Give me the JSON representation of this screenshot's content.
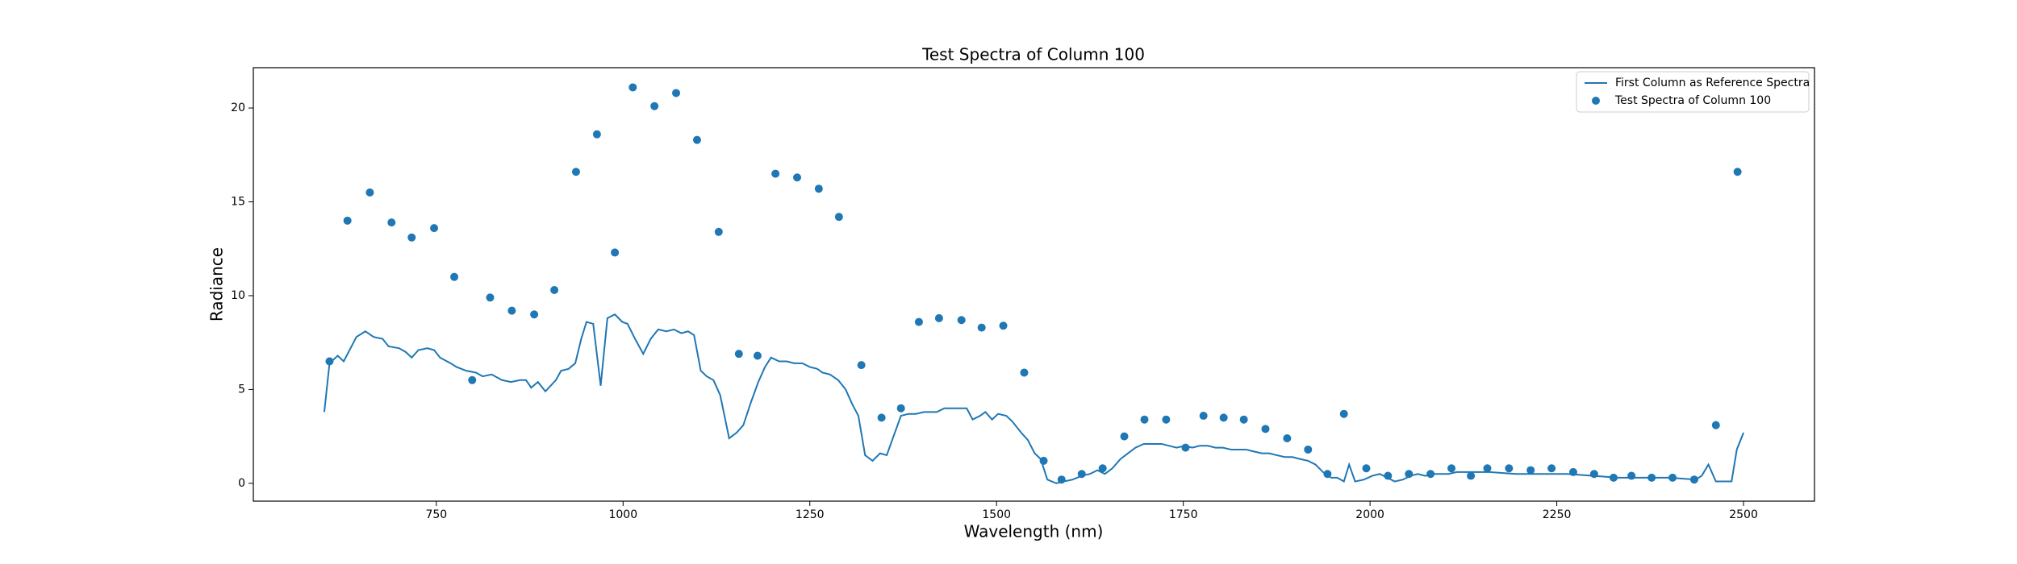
{
  "chart_data": {
    "type": "line",
    "title": "Test Spectra of Column 100",
    "x_label": "Wavelength (nm)",
    "y_label": "Radiance",
    "xlim": [
      505,
      2595
    ],
    "ylim": [
      -0.95,
      22.15
    ],
    "xticks": [
      750,
      1000,
      1250,
      1500,
      1750,
      2000,
      2250,
      2500
    ],
    "yticks": [
      0,
      5,
      10,
      15,
      20
    ],
    "grid": false,
    "legend": "upper right",
    "series": [
      {
        "name": "First Column as Reference Spectra",
        "type": "line",
        "color": "#1f77b4",
        "x": [
          600,
          607,
          618,
          626,
          643,
          655,
          666,
          678,
          686,
          700,
          709,
          717,
          726,
          738,
          747,
          755,
          769,
          777,
          790,
          803,
          812,
          824,
          838,
          850,
          862,
          870,
          877,
          886,
          896,
          910,
          917,
          927,
          936,
          944,
          951,
          960,
          970,
          979,
          989,
          999,
          1006,
          1016,
          1027,
          1037,
          1047,
          1058,
          1068,
          1078,
          1087,
          1095,
          1104,
          1112,
          1121,
          1130,
          1142,
          1152,
          1161,
          1171,
          1181,
          1190,
          1198,
          1209,
          1219,
          1229,
          1240,
          1250,
          1260,
          1267,
          1277,
          1288,
          1298,
          1307,
          1315,
          1324,
          1334,
          1344,
          1353,
          1362,
          1372,
          1382,
          1392,
          1403,
          1411,
          1420,
          1430,
          1441,
          1449,
          1460,
          1468,
          1478,
          1485,
          1494,
          1502,
          1513,
          1521,
          1533,
          1542,
          1551,
          1559,
          1568,
          1580,
          1590,
          1602,
          1614,
          1625,
          1635,
          1645,
          1655,
          1666,
          1676,
          1686,
          1697,
          1709,
          1721,
          1731,
          1741,
          1752,
          1762,
          1772,
          1783,
          1793,
          1803,
          1814,
          1824,
          1834,
          1844,
          1855,
          1865,
          1875,
          1886,
          1896,
          1906,
          1917,
          1927,
          1937,
          1948,
          1956,
          1965,
          1972,
          1980,
          1992,
          2003,
          2013,
          2023,
          2033,
          2044,
          2054,
          2064,
          2074,
          2085,
          2095,
          2105,
          2116,
          2126,
          2136,
          2160,
          2195,
          2229,
          2264,
          2298,
          2332,
          2367,
          2401,
          2436,
          2444,
          2453,
          2463,
          2474,
          2484,
          2491,
          2500
        ],
        "values": [
          3.8,
          6.4,
          6.8,
          6.5,
          7.8,
          8.1,
          7.8,
          7.7,
          7.3,
          7.2,
          7.0,
          6.7,
          7.1,
          7.2,
          7.1,
          6.7,
          6.4,
          6.2,
          6.0,
          5.9,
          5.7,
          5.8,
          5.5,
          5.4,
          5.5,
          5.5,
          5.1,
          5.4,
          4.9,
          5.5,
          6.0,
          6.1,
          6.4,
          7.7,
          8.6,
          8.5,
          5.2,
          8.8,
          9.0,
          8.6,
          8.5,
          7.7,
          6.9,
          7.7,
          8.2,
          8.1,
          8.2,
          8.0,
          8.1,
          7.9,
          6.0,
          5.7,
          5.5,
          4.7,
          2.4,
          2.7,
          3.1,
          4.3,
          5.4,
          6.2,
          6.7,
          6.5,
          6.5,
          6.4,
          6.4,
          6.2,
          6.1,
          5.9,
          5.8,
          5.5,
          5.0,
          4.2,
          3.6,
          1.5,
          1.2,
          1.6,
          1.5,
          2.5,
          3.6,
          3.7,
          3.7,
          3.8,
          3.8,
          3.8,
          4.0,
          4.0,
          4.0,
          4.0,
          3.4,
          3.6,
          3.8,
          3.4,
          3.7,
          3.6,
          3.3,
          2.7,
          2.3,
          1.6,
          1.3,
          0.2,
          0.0,
          0.1,
          0.2,
          0.4,
          0.5,
          0.7,
          0.5,
          0.8,
          1.3,
          1.6,
          1.9,
          2.1,
          2.1,
          2.1,
          2.0,
          1.9,
          2.0,
          1.9,
          2.0,
          2.0,
          1.9,
          1.9,
          1.8,
          1.8,
          1.8,
          1.7,
          1.6,
          1.6,
          1.5,
          1.4,
          1.4,
          1.3,
          1.2,
          1.0,
          0.6,
          0.3,
          0.3,
          0.1,
          1.0,
          0.1,
          0.2,
          0.4,
          0.5,
          0.3,
          0.1,
          0.2,
          0.4,
          0.5,
          0.4,
          0.5,
          0.5,
          0.5,
          0.6,
          0.6,
          0.6,
          0.6,
          0.5,
          0.5,
          0.5,
          0.4,
          0.3,
          0.3,
          0.3,
          0.2,
          0.4,
          1.0,
          0.1,
          0.1,
          0.1,
          1.8,
          2.7
        ]
      },
      {
        "name": "Test Spectra of Column 100",
        "type": "scatter",
        "color": "#1f77b4",
        "x": [
          607,
          631,
          661,
          690,
          717,
          747,
          774,
          798,
          822,
          851,
          881,
          908,
          937,
          965,
          989,
          1013,
          1042,
          1071,
          1099,
          1128,
          1155,
          1180,
          1204,
          1233,
          1262,
          1289,
          1319,
          1346,
          1372,
          1396,
          1423,
          1453,
          1480,
          1509,
          1537,
          1563,
          1587,
          1614,
          1642,
          1671,
          1698,
          1727,
          1753,
          1777,
          1804,
          1831,
          1860,
          1889,
          1917,
          1943,
          1965,
          1995,
          2024,
          2052,
          2081,
          2109,
          2135,
          2157,
          2186,
          2215,
          2243,
          2272,
          2300,
          2326,
          2350,
          2377,
          2405,
          2434,
          2463,
          2492
        ],
        "values": [
          6.5,
          14.0,
          15.5,
          13.9,
          13.1,
          13.6,
          11.0,
          5.5,
          9.9,
          9.2,
          9.0,
          10.3,
          16.6,
          18.6,
          12.3,
          21.1,
          20.1,
          20.8,
          18.3,
          13.4,
          6.9,
          6.8,
          16.5,
          16.3,
          15.7,
          14.2,
          6.3,
          3.5,
          4.0,
          8.6,
          8.8,
          8.7,
          8.3,
          8.4,
          5.9,
          1.2,
          0.2,
          0.5,
          0.8,
          2.5,
          3.4,
          3.4,
          1.9,
          3.6,
          3.5,
          3.4,
          2.9,
          2.4,
          1.8,
          0.5,
          3.7,
          0.8,
          0.4,
          0.5,
          0.5,
          0.8,
          0.4,
          0.8,
          0.8,
          0.7,
          0.8,
          0.6,
          0.5,
          0.3,
          0.4,
          0.3,
          0.3,
          0.2,
          3.1,
          16.6
        ]
      }
    ]
  }
}
